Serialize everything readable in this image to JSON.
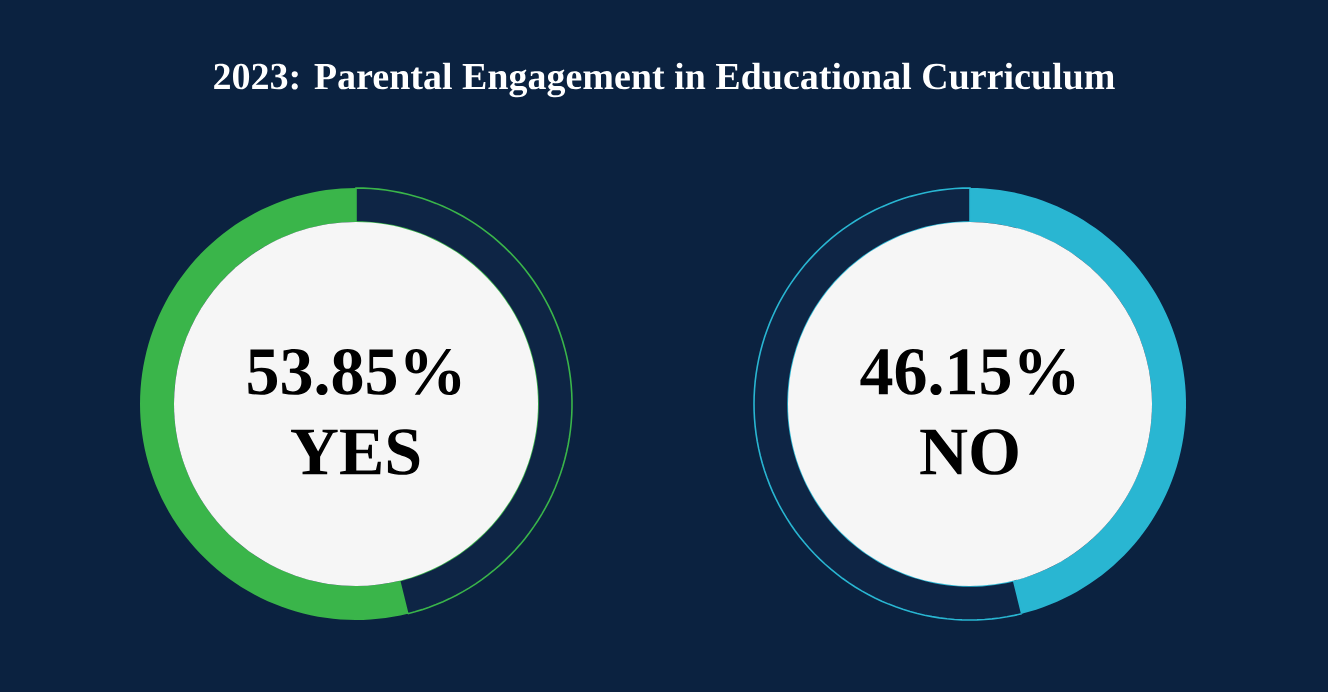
{
  "chart_data": [
    {
      "type": "donut",
      "title": "2023: Parental Engagement in Educational Curriculum",
      "categories": [
        "YES",
        null
      ],
      "values": [
        53.85,
        46.15
      ],
      "colors": [
        "#3ab54a",
        "#0e2545"
      ],
      "value_labels": [
        "53.85%",
        null
      ]
    },
    {
      "type": "donut",
      "categories": [
        "NO",
        null
      ],
      "values": [
        46.15,
        53.85
      ],
      "colors": [
        "#29b6d2",
        "#0e2545"
      ],
      "value_labels": [
        "46.15%",
        null
      ]
    }
  ]
}
